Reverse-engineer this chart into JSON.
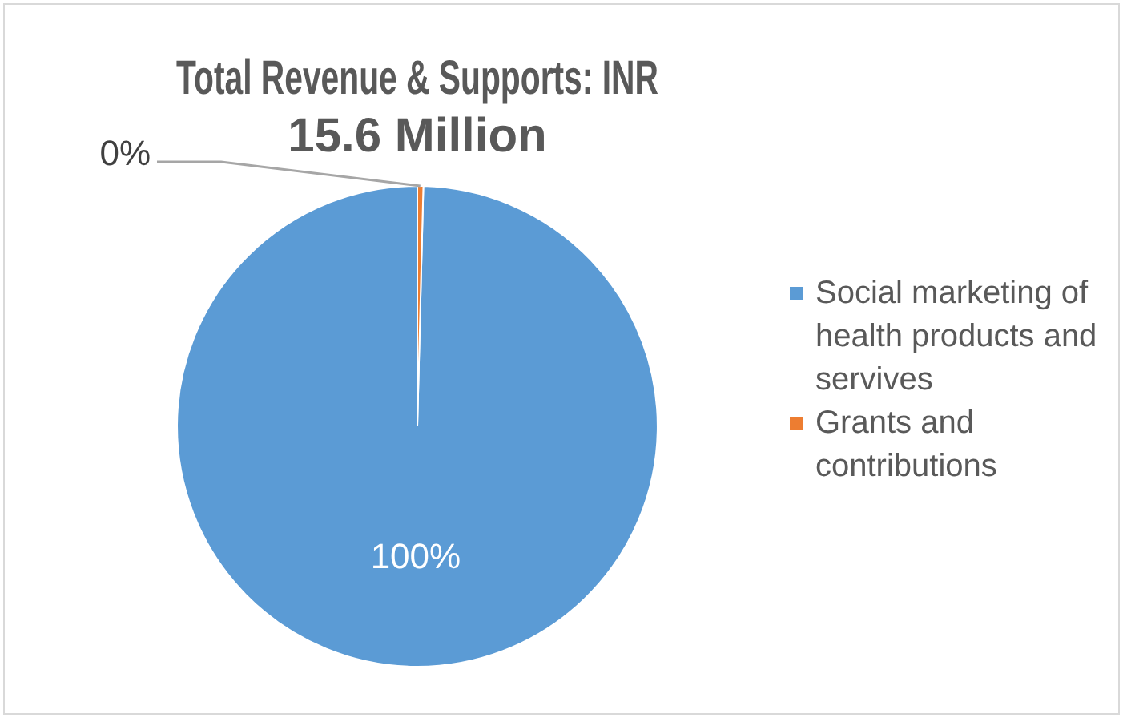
{
  "chart_data": {
    "type": "pie",
    "title": "Total Revenue & Supports: INR 15.6 Million",
    "categories": [
      "Social marketing of health products and servives",
      "Grants and contributions"
    ],
    "values": [
      99.6,
      0.4
    ],
    "value_labels": [
      "100%",
      "0%"
    ],
    "colors": [
      "#5b9bd5",
      "#ed7d31"
    ],
    "legend": "right"
  }
}
